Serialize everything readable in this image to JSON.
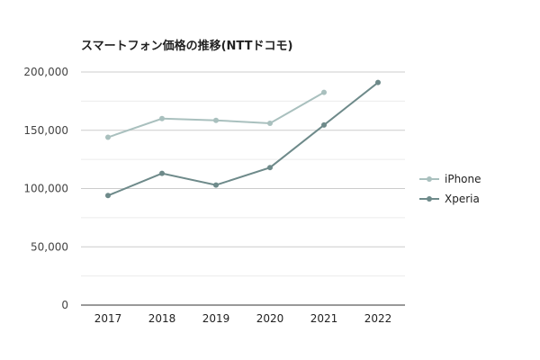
{
  "chart_data": {
    "type": "line",
    "title": "スマートフォン価格の推移(NTTドコモ)",
    "categories": [
      "2017",
      "2018",
      "2019",
      "2020",
      "2021",
      "2022"
    ],
    "series": [
      {
        "name": "iPhone",
        "color": "#a9c0be",
        "values": [
          144000,
          160000,
          158500,
          156000,
          182500,
          null
        ]
      },
      {
        "name": "Xperia",
        "color": "#6e8a8a",
        "values": [
          94000,
          113000,
          103000,
          118000,
          154500,
          191000
        ]
      }
    ],
    "ylim": [
      0,
      200000
    ],
    "yticks": [
      "0",
      "50,000",
      "100,000",
      "150,000",
      "200,000"
    ],
    "ytick_values": [
      0,
      50000,
      100000,
      150000,
      200000
    ],
    "grid": true,
    "legend_position": "right"
  }
}
